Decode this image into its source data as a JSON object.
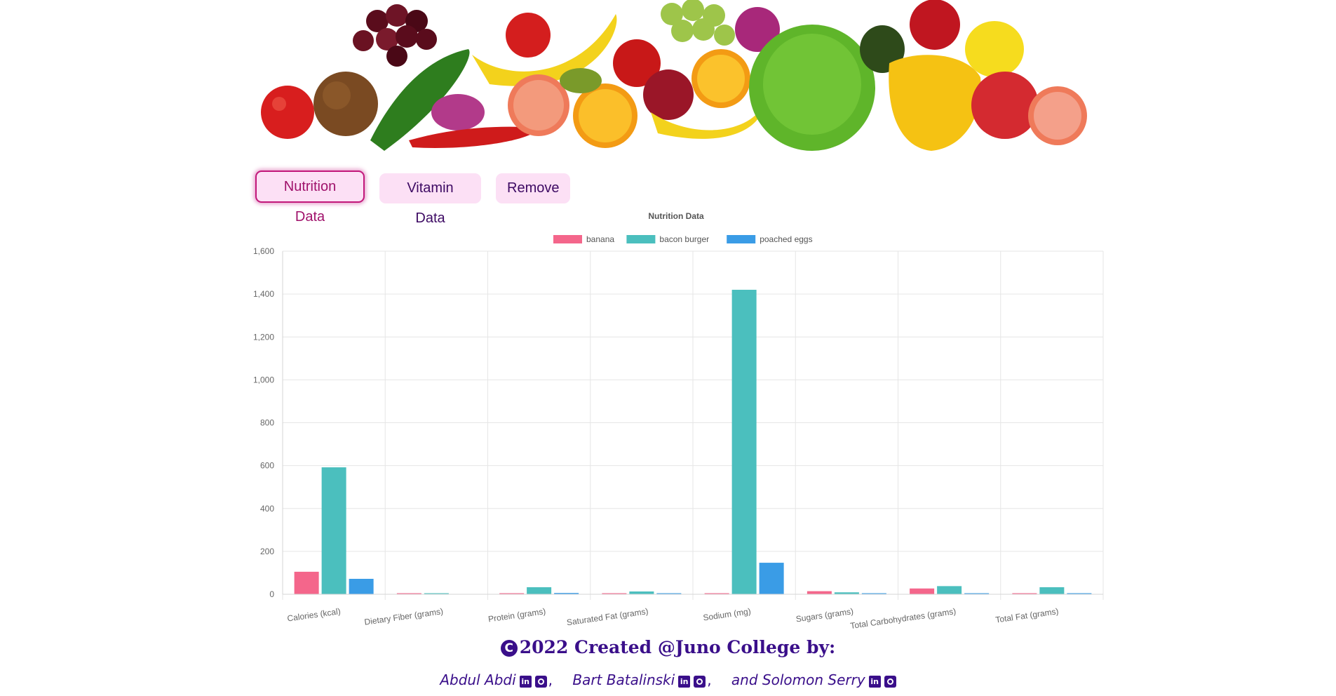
{
  "buttons": {
    "nutrition": "Nutrition Data",
    "vitamin": "Vitamin Data",
    "remove": "Remove"
  },
  "chart_data": {
    "type": "bar",
    "title": "Nutrition Data",
    "legend_position": "top",
    "grid": true,
    "categories": [
      "Calories (kcal)",
      "Dietary Fiber (grams)",
      "Protein (grams)",
      "Saturated Fat (grams)",
      "Sodium (mg)",
      "Sugars (grams)",
      "Total Carbohydrates (grams)",
      "Total Fat (grams)"
    ],
    "series": [
      {
        "name": "banana",
        "color": "#f4668b",
        "values": [
          105,
          3.1,
          1.3,
          0.1,
          1,
          14.4,
          27,
          0.4
        ]
      },
      {
        "name": "bacon burger",
        "color": "#4bbfbe",
        "values": [
          592,
          2,
          33,
          13,
          1420,
          9,
          38,
          33
        ]
      },
      {
        "name": "poached eggs",
        "color": "#3a9ce6",
        "values": [
          72,
          0,
          6,
          1.6,
          147,
          0.2,
          0.4,
          5
        ]
      }
    ],
    "ylim": [
      0,
      1600
    ],
    "yticks": [
      0,
      200,
      400,
      600,
      800,
      1000,
      1200,
      1400,
      1600
    ],
    "ytick_labels": [
      "0",
      "200",
      "400",
      "600",
      "800",
      "1,000",
      "1,200",
      "1,400",
      "1,600"
    ]
  },
  "footer": {
    "copyright_symbol": "C",
    "title": "2022 Created @Juno College by:",
    "authors": [
      {
        "name": "Abdul Abdi",
        "sep": ","
      },
      {
        "name": "Bart Batalinski",
        "sep": ","
      },
      {
        "name": "and Solomon Serry",
        "sep": ""
      }
    ],
    "linkedin_icon": "linkedin-icon",
    "github_icon": "github-icon"
  }
}
